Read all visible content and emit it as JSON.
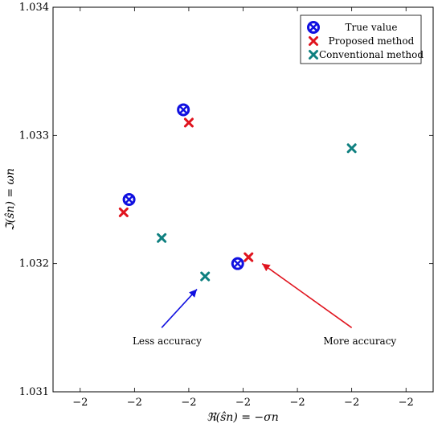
{
  "chart_data": {
    "type": "scatter",
    "title": "",
    "xlabel": "ℜ(ŝn) = −σn",
    "ylabel": "ℑ(ŝn) = ωn",
    "xlim": [
      -2.0035,
      -1.9965
    ],
    "ylim": [
      1.031,
      1.034
    ],
    "x_tick_values": [
      -2.003,
      -2.002,
      -2.001,
      -2.0,
      -1.999,
      -1.998,
      -1.997
    ],
    "x_tick_labels": [
      "−2",
      "−2",
      "−2",
      "−2",
      "−2",
      "−2",
      "−2"
    ],
    "y_tick_values": [
      1.031,
      1.032,
      1.033,
      1.034
    ],
    "y_tick_labels": [
      "1.031",
      "1.032",
      "1.033",
      "1.034"
    ],
    "grid": false,
    "legend_position": "top-right",
    "series": [
      {
        "name": "True value",
        "marker": "otimes",
        "color": "#1010e0",
        "x": [
          -2.0021,
          -2.0011,
          -2.0001
        ],
        "y": [
          1.0325,
          1.0332,
          1.032
        ]
      },
      {
        "name": "Proposed method",
        "marker": "x",
        "color": "#e0141e",
        "x": [
          -2.0022,
          -2.001,
          -1.9999
        ],
        "y": [
          1.0324,
          1.0331,
          1.03205
        ]
      },
      {
        "name": "Conventional method",
        "marker": "x",
        "color": "#0f8080",
        "x": [
          -2.0015,
          -2.0007,
          -1.998
        ],
        "y": [
          1.0322,
          1.0319,
          1.0329
        ]
      }
    ],
    "annotations": [
      {
        "text": "Less accuracy",
        "text_x": -2.0014,
        "text_y": 1.03137,
        "arrow_from": [
          -2.0015,
          1.0315
        ],
        "arrow_to": [
          -2.00085,
          1.0318
        ],
        "color": "#1010e0"
      },
      {
        "text": "More accuracy",
        "text_x": -1.99785,
        "text_y": 1.03137,
        "arrow_from": [
          -1.998,
          1.0315
        ],
        "arrow_to": [
          -1.99965,
          1.032
        ],
        "color": "#e0141e"
      }
    ]
  }
}
